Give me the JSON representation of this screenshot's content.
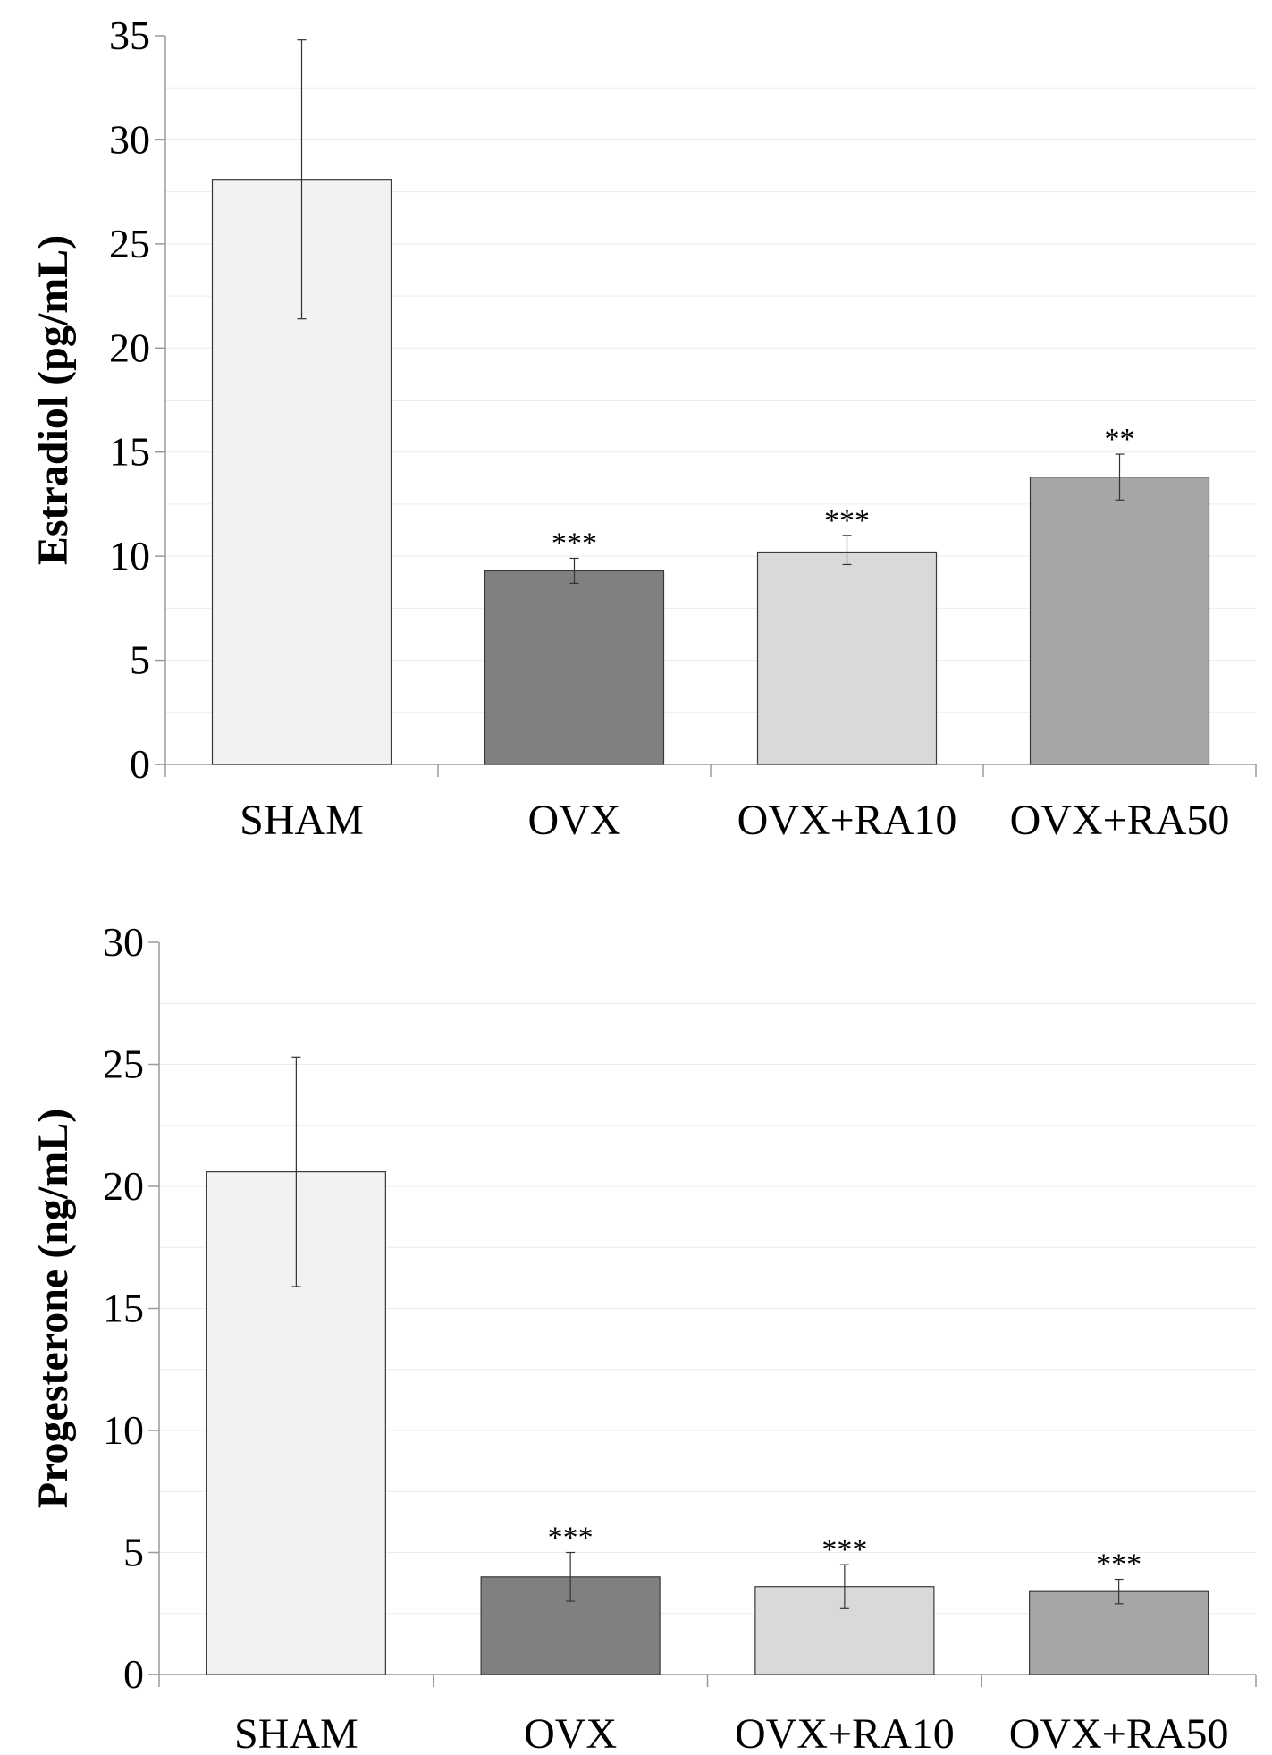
{
  "chart_data": [
    {
      "type": "bar",
      "title": "",
      "xlabel": "",
      "ylabel": "Estradiol (pg/mL)",
      "ylim": [
        0,
        35
      ],
      "yticks": [
        0,
        5,
        10,
        15,
        20,
        25,
        30,
        35
      ],
      "categories": [
        "SHAM",
        "OVX",
        "OVX+RA10",
        "OVX+RA50"
      ],
      "values": [
        28.1,
        9.3,
        10.2,
        13.8
      ],
      "error": [
        [
          21.4,
          34.8
        ],
        [
          8.7,
          9.9
        ],
        [
          9.6,
          11.0
        ],
        [
          12.7,
          14.9
        ]
      ],
      "significance": [
        "",
        "***",
        "***",
        "**"
      ],
      "colors": [
        "#f2f2f2",
        "#808080",
        "#d9d9d9",
        "#a6a6a6"
      ]
    },
    {
      "type": "bar",
      "title": "",
      "xlabel": "",
      "ylabel": "Progesterone (ng/mL)",
      "ylim": [
        0,
        30
      ],
      "yticks": [
        0,
        5,
        10,
        15,
        20,
        25,
        30
      ],
      "categories": [
        "SHAM",
        "OVX",
        "OVX+RA10",
        "OVX+RA50"
      ],
      "values": [
        20.6,
        4.0,
        3.6,
        3.4
      ],
      "error": [
        [
          15.9,
          25.3
        ],
        [
          3.0,
          5.0
        ],
        [
          2.7,
          4.5
        ],
        [
          2.9,
          3.9
        ]
      ],
      "significance": [
        "***",
        "***",
        "***"
      ],
      "significance_for": [
        1,
        2,
        3
      ],
      "colors": [
        "#f2f2f2",
        "#808080",
        "#d9d9d9",
        "#a6a6a6"
      ]
    }
  ]
}
